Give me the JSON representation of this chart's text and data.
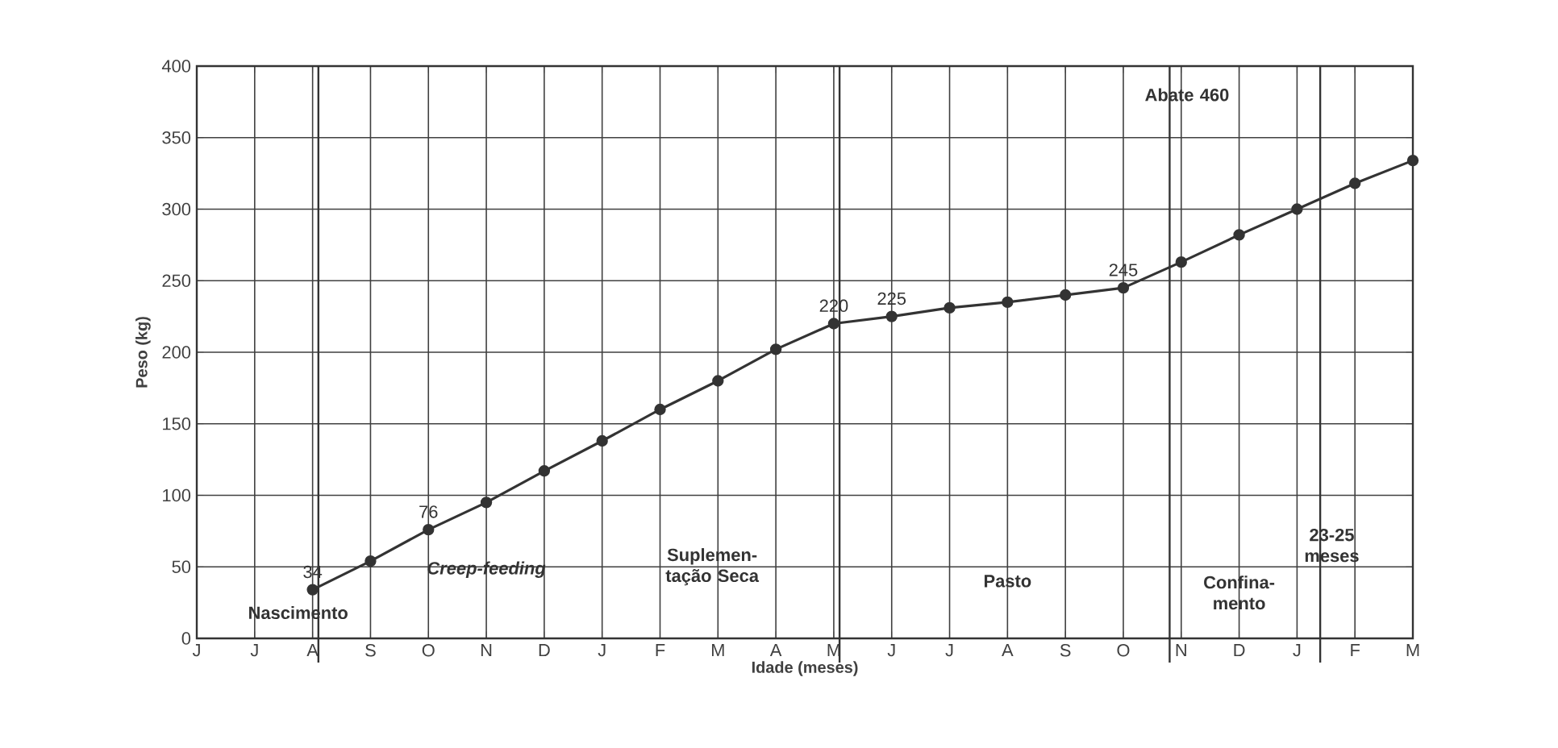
{
  "chart_data": {
    "type": "line",
    "xlabel": "Idade (meses)",
    "ylabel": "Peso (kg)",
    "categories": [
      "J",
      "J",
      "A",
      "S",
      "O",
      "N",
      "D",
      "J",
      "F",
      "M",
      "A",
      "M",
      "J",
      "J",
      "A",
      "S",
      "O",
      "N",
      "D",
      "J",
      "F",
      "M"
    ],
    "series": [
      {
        "color": "#333333",
        "values": [
          null,
          null,
          34,
          54,
          76,
          95,
          117,
          138,
          160,
          180,
          202,
          220,
          225,
          231,
          235,
          240,
          245,
          263,
          282,
          300,
          318,
          334
        ],
        "value_labels": [
          null,
          null,
          "34",
          null,
          "76",
          null,
          null,
          null,
          null,
          null,
          null,
          "220",
          "225",
          null,
          null,
          null,
          "245",
          null,
          null,
          null,
          null,
          null
        ]
      }
    ],
    "ylim": [
      0,
      400
    ],
    "yticks": [
      0,
      50,
      100,
      150,
      200,
      250,
      300,
      350,
      400
    ],
    "annotations": [
      "Nascimento",
      "Creep-feeding",
      "Suplemen-tação Seca",
      "Pasto",
      "Confina-mento",
      "Abate 460",
      "23-25 meses"
    ],
    "grid": true,
    "marker": "circle",
    "line_style": "solid"
  }
}
